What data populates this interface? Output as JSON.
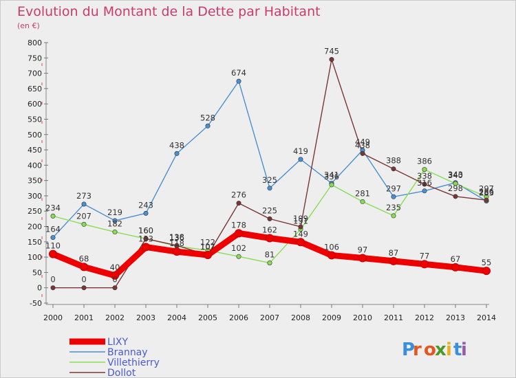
{
  "chart_data": {
    "type": "line",
    "title": "Evolution du Montant de la Dette par Habitant",
    "subtitle": "(en €)",
    "xlabel": "",
    "ylabel": "",
    "x": [
      "2000",
      "2001",
      "2002",
      "2003",
      "2004",
      "2005",
      "2006",
      "2007",
      "2008",
      "2009",
      "2010",
      "2011",
      "2012",
      "2013",
      "2014"
    ],
    "ylim": [
      -50,
      800
    ],
    "yticks": [
      "-50",
      "0",
      "50",
      "100",
      "150",
      "200",
      "250",
      "300",
      "350",
      "400",
      "450",
      "500",
      "550",
      "600",
      "650",
      "700",
      "750",
      "800"
    ],
    "grid": false,
    "legend_position": "bottom-left",
    "series": [
      {
        "name": "LIXY",
        "color": "#ee0000",
        "values": [
          110,
          68,
          40,
          133,
          118,
          107,
          178,
          162,
          149,
          106,
          97,
          87,
          77,
          67,
          55
        ],
        "labels": [
          "110",
          "68",
          "40",
          "133",
          "118",
          "107",
          "178",
          "162",
          "149",
          "106",
          "97",
          "87",
          "77",
          "67",
          "55"
        ]
      },
      {
        "name": "Brannay",
        "color": "#4a90d0",
        "values": [
          164,
          273,
          219,
          243,
          438,
          528,
          674,
          325,
          419,
          341,
          449,
          297,
          316,
          343,
          283
        ],
        "labels": [
          "164",
          "273",
          "219",
          "243",
          "438",
          "528",
          "674",
          "325",
          "419",
          "341",
          "449",
          "297",
          "316",
          "343",
          "283"
        ]
      },
      {
        "name": "Villethierry",
        "color": "#88dd55",
        "values": [
          234,
          207,
          182,
          160,
          136,
          122,
          102,
          81,
          191,
          336,
          281,
          235,
          386,
          340,
          297
        ],
        "labels": [
          "234",
          "207",
          "182",
          "160",
          "136",
          "122",
          "102",
          "81",
          "191",
          "336",
          "281",
          "235",
          "386",
          "340",
          "297"
        ]
      },
      {
        "name": "Dollot",
        "color": "#7a3535",
        "values": [
          0,
          0,
          0,
          160,
          138,
          107,
          276,
          225,
          199,
          745,
          438,
          388,
          338,
          298,
          286
        ],
        "labels": [
          "0",
          "0",
          "0",
          "160",
          "138",
          "107",
          "276",
          "225",
          "199",
          "745",
          "438",
          "388",
          "338",
          "298",
          "286"
        ]
      }
    ]
  },
  "brand": {
    "text": "Proxiti",
    "letters": [
      "P",
      "r",
      "o",
      "x",
      "i",
      "t",
      "i"
    ],
    "colors": [
      "#3a8fd8",
      "#e8541e",
      "#e8541e",
      "#4a9a2a",
      "#e8b01e",
      "#3a8fd8",
      "#9a5aa8"
    ]
  }
}
